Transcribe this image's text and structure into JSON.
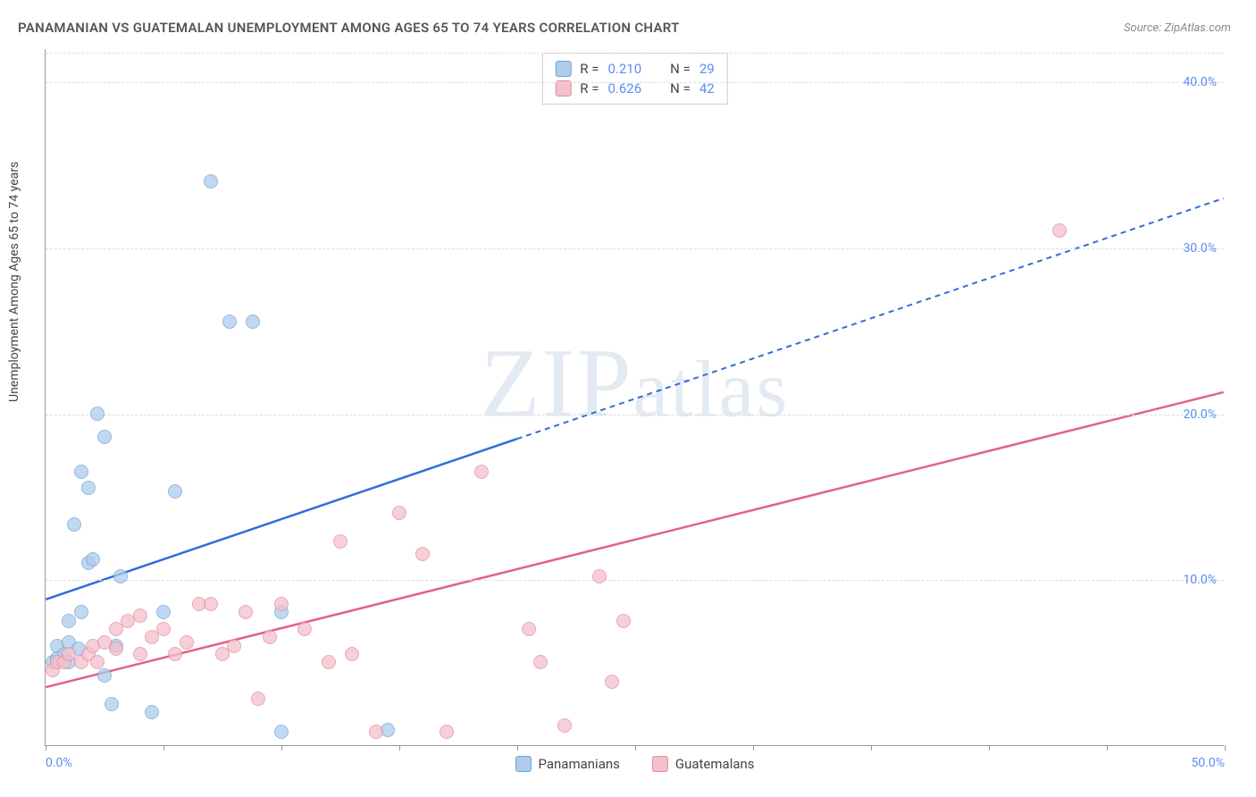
{
  "title": "PANAMANIAN VS GUATEMALAN UNEMPLOYMENT AMONG AGES 65 TO 74 YEARS CORRELATION CHART",
  "source": "Source: ZipAtlas.com",
  "y_axis_label": "Unemployment Among Ages 65 to 74 years",
  "watermark": "ZIPatlas",
  "chart": {
    "type": "scatter",
    "xlim": [
      0,
      50
    ],
    "ylim": [
      0,
      42
    ],
    "x_ticks": [
      0,
      5,
      10,
      15,
      20,
      25,
      30,
      35,
      40,
      45,
      50
    ],
    "x_tick_labels_shown": {
      "0": "0.0%",
      "50": "50.0%"
    },
    "y_ticks": [
      10,
      20,
      30,
      40
    ],
    "y_tick_labels": {
      "10": "10.0%",
      "20": "20.0%",
      "30": "30.0%",
      "40": "40.0%"
    },
    "grid_color": "#dddddd",
    "background_color": "#ffffff",
    "marker_radius": 8,
    "series": [
      {
        "name": "Panamanians",
        "fill_color": "#aecbeb",
        "stroke_color": "#6fa3d9",
        "trend_color": "#2e6fd6",
        "r": "0.210",
        "n": "29",
        "trend": {
          "x1": 0,
          "y1": 8.8,
          "x2": 50,
          "y2": 33.0,
          "x_solid_to": 20
        },
        "points": [
          [
            0.3,
            5.0
          ],
          [
            0.5,
            6.0
          ],
          [
            0.5,
            5.2
          ],
          [
            0.8,
            5.5
          ],
          [
            1.0,
            6.2
          ],
          [
            1.0,
            7.5
          ],
          [
            1.2,
            13.3
          ],
          [
            1.4,
            5.8
          ],
          [
            1.5,
            16.5
          ],
          [
            1.5,
            8.0
          ],
          [
            1.8,
            11.0
          ],
          [
            1.8,
            15.5
          ],
          [
            2.0,
            11.2
          ],
          [
            2.2,
            20.0
          ],
          [
            2.5,
            18.6
          ],
          [
            2.5,
            4.2
          ],
          [
            2.8,
            2.5
          ],
          [
            3.0,
            6.0
          ],
          [
            3.2,
            10.2
          ],
          [
            4.5,
            2.0
          ],
          [
            5.0,
            8.0
          ],
          [
            5.5,
            15.3
          ],
          [
            7.0,
            34.0
          ],
          [
            7.8,
            25.5
          ],
          [
            8.8,
            25.5
          ],
          [
            10.0,
            0.8
          ],
          [
            10.0,
            8.0
          ],
          [
            14.5,
            0.9
          ],
          [
            1.0,
            5.0
          ]
        ]
      },
      {
        "name": "Guatemalans",
        "fill_color": "#f4c0cb",
        "stroke_color": "#e58aa0",
        "trend_color": "#e26284",
        "r": "0.626",
        "n": "42",
        "trend": {
          "x1": 0,
          "y1": 3.5,
          "x2": 50,
          "y2": 21.3,
          "x_solid_to": 50
        },
        "points": [
          [
            0.3,
            4.5
          ],
          [
            0.5,
            5.0
          ],
          [
            0.8,
            5.0
          ],
          [
            1.0,
            5.5
          ],
          [
            1.5,
            5.0
          ],
          [
            1.8,
            5.5
          ],
          [
            2.0,
            6.0
          ],
          [
            2.2,
            5.0
          ],
          [
            2.5,
            6.2
          ],
          [
            3.0,
            5.8
          ],
          [
            3.0,
            7.0
          ],
          [
            3.5,
            7.5
          ],
          [
            4.0,
            5.5
          ],
          [
            4.0,
            7.8
          ],
          [
            4.5,
            6.5
          ],
          [
            5.0,
            7.0
          ],
          [
            5.5,
            5.5
          ],
          [
            6.0,
            6.2
          ],
          [
            6.5,
            8.5
          ],
          [
            7.0,
            8.5
          ],
          [
            7.5,
            5.5
          ],
          [
            8.0,
            6.0
          ],
          [
            8.5,
            8.0
          ],
          [
            9.0,
            2.8
          ],
          [
            9.5,
            6.5
          ],
          [
            10.0,
            8.5
          ],
          [
            11.0,
            7.0
          ],
          [
            12.0,
            5.0
          ],
          [
            12.5,
            12.3
          ],
          [
            13.0,
            5.5
          ],
          [
            14.0,
            0.8
          ],
          [
            15.0,
            14.0
          ],
          [
            16.0,
            11.5
          ],
          [
            17.0,
            0.8
          ],
          [
            18.5,
            16.5
          ],
          [
            20.5,
            7.0
          ],
          [
            21.0,
            5.0
          ],
          [
            22.0,
            1.2
          ],
          [
            23.5,
            10.2
          ],
          [
            24.0,
            3.8
          ],
          [
            24.5,
            7.5
          ],
          [
            43.0,
            31.0
          ]
        ]
      }
    ]
  },
  "legend_bottom": [
    {
      "label": "Panamanians",
      "fill": "#aecbeb",
      "stroke": "#6fa3d9"
    },
    {
      "label": "Guatemalans",
      "fill": "#f4c0cb",
      "stroke": "#e58aa0"
    }
  ]
}
